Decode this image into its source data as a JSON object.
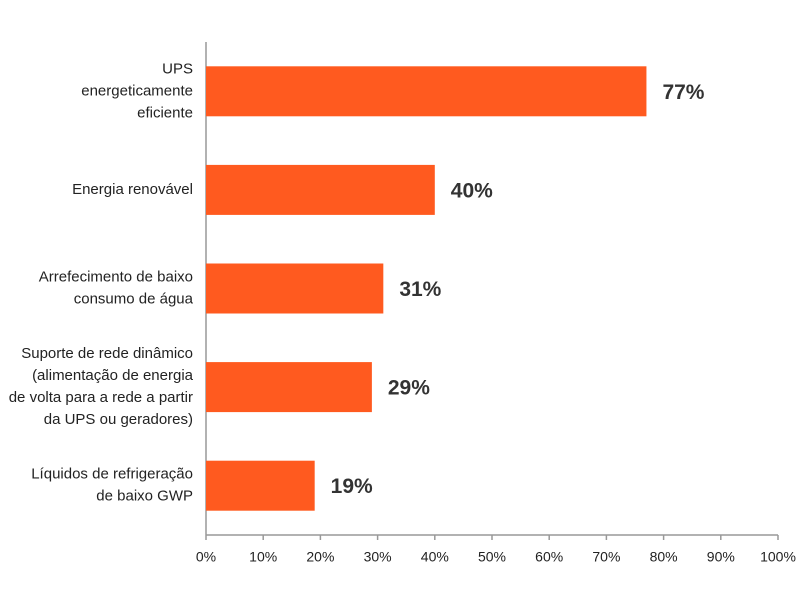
{
  "chart_data": {
    "type": "barh",
    "categories": [
      "UPS\nenergeticamente\neficiente",
      "Energia renovável",
      "Arrefecimento de baixo\nconsumo de água",
      "Suporte de rede dinâmico\n(alimentação de energia\nde volta para a rede a partir\nda UPS ou geradores)",
      "Líquidos de refrigeração\nde baixo GWP"
    ],
    "values": [
      77,
      40,
      31,
      29,
      19
    ],
    "value_labels": [
      "77%",
      "40%",
      "31%",
      "29%",
      "19%"
    ],
    "color": "#ff5a1f",
    "xlim": [
      0,
      100
    ],
    "xticks": [
      {
        "value": 0,
        "label": "0%"
      },
      {
        "value": 10,
        "label": "10%"
      },
      {
        "value": 20,
        "label": "20%"
      },
      {
        "value": 30,
        "label": "30%"
      },
      {
        "value": 40,
        "label": "40%"
      },
      {
        "value": 50,
        "label": "50%"
      },
      {
        "value": 60,
        "label": "60%"
      },
      {
        "value": 70,
        "label": "70%"
      },
      {
        "value": 80,
        "label": "80%"
      },
      {
        "value": 90,
        "label": "90%"
      },
      {
        "value": 100,
        "label": "100%"
      }
    ]
  }
}
